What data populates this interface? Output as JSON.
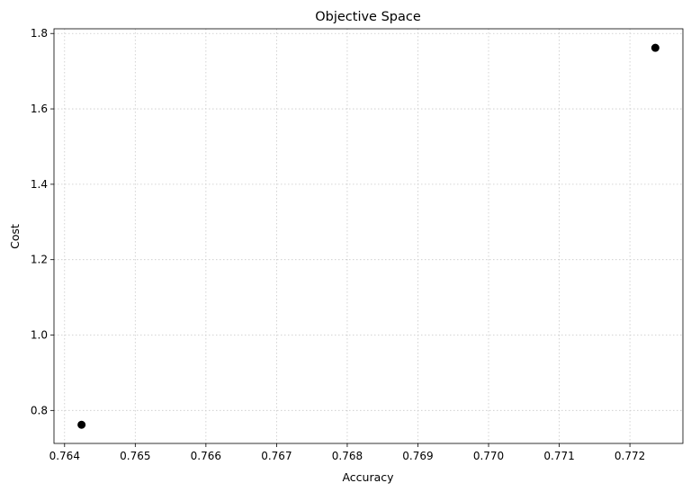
{
  "chart_data": {
    "type": "scatter",
    "title": "Objective Space",
    "xlabel": "Accuracy",
    "ylabel": "Cost",
    "xlim": [
      0.76385,
      0.77275
    ],
    "ylim": [
      0.7125,
      1.8125
    ],
    "xticks": [
      "0.764",
      "0.765",
      "0.766",
      "0.767",
      "0.768",
      "0.769",
      "0.770",
      "0.771",
      "0.772"
    ],
    "xtick_values": [
      0.764,
      0.765,
      0.766,
      0.767,
      0.768,
      0.769,
      0.77,
      0.771,
      0.772
    ],
    "yticks": [
      "0.8",
      "1.0",
      "1.2",
      "1.4",
      "1.6",
      "1.8"
    ],
    "ytick_values": [
      0.8,
      1.0,
      1.2,
      1.4,
      1.6,
      1.8
    ],
    "grid": true,
    "point_color": "#000000",
    "points": [
      {
        "x": 0.76424,
        "y": 0.762
      },
      {
        "x": 0.77236,
        "y": 1.762
      }
    ]
  }
}
